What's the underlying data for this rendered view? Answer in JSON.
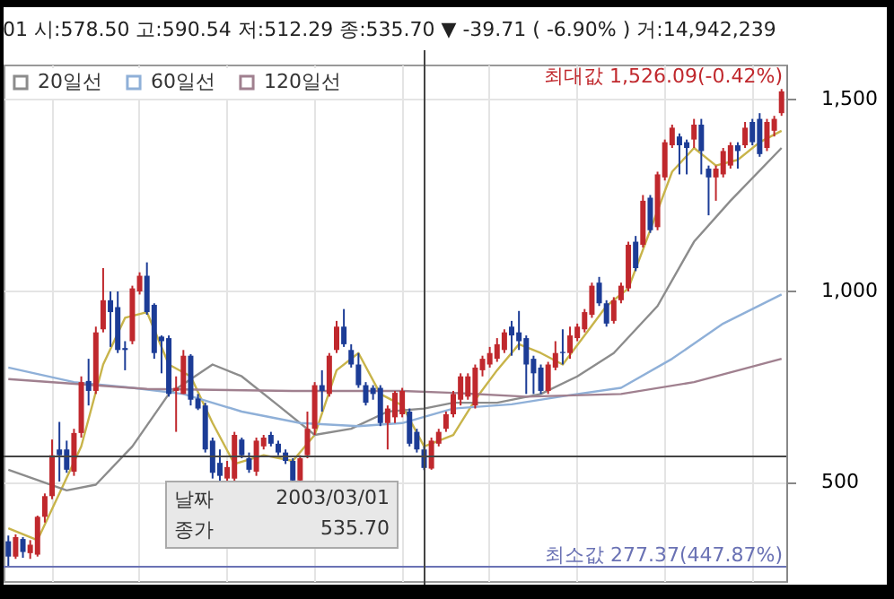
{
  "chart_data": {
    "type": "candlestick",
    "title": "01 시:578.50 고:590.54 저:512.29 종:535.70 ▼ -39.71 ( -6.90% ) 거:14,942,239",
    "categories": [
      null,
      null,
      null,
      null,
      null,
      null,
      null,
      null,
      null,
      null,
      null,
      null,
      null,
      null,
      null,
      null,
      null,
      null,
      null,
      null,
      null,
      null,
      null,
      null,
      null,
      null,
      null,
      null,
      null,
      null,
      null,
      null,
      null,
      null,
      null,
      null,
      null,
      null,
      null,
      null,
      null,
      null,
      null,
      null,
      null,
      null,
      null,
      null,
      null,
      null,
      null,
      null,
      null,
      null,
      null,
      null,
      null,
      null,
      null,
      null,
      null,
      null,
      null,
      null,
      null,
      null,
      null,
      null,
      null,
      null,
      null,
      null,
      null,
      null,
      null,
      null,
      null,
      null,
      null,
      null,
      null,
      null,
      null,
      null,
      null,
      null,
      null,
      null,
      null,
      null,
      null,
      null,
      null,
      null,
      null,
      null,
      null,
      null,
      null,
      null,
      null,
      null,
      null,
      null,
      null,
      null,
      null
    ],
    "ohlc": [
      [
        344,
        359,
        277.37,
        304
      ],
      [
        304,
        362,
        298,
        355
      ],
      [
        350,
        355,
        301,
        316
      ],
      [
        313,
        347,
        298,
        335
      ],
      [
        309,
        411,
        304,
        408
      ],
      [
        408,
        469,
        393,
        462
      ],
      [
        462,
        610,
        454,
        569
      ],
      [
        584,
        656,
        500,
        569
      ],
      [
        584,
        607,
        523,
        531
      ],
      [
        526,
        638,
        515,
        627
      ],
      [
        627,
        775,
        615,
        760
      ],
      [
        763,
        821,
        699,
        737
      ],
      [
        737,
        905,
        729,
        890
      ],
      [
        898,
        1058,
        890,
        974
      ],
      [
        974,
        997,
        852,
        943
      ],
      [
        956,
        997,
        836,
        844
      ],
      [
        849,
        867,
        791,
        844
      ],
      [
        867,
        1012,
        859,
        1005
      ],
      [
        997,
        1047,
        989,
        1038
      ],
      [
        1038,
        1073,
        936,
        943
      ],
      [
        962,
        966,
        821,
        836
      ],
      [
        879,
        882,
        783,
        867
      ],
      [
        875,
        882,
        722,
        729
      ],
      [
        737,
        775,
        630,
        745
      ],
      [
        729,
        844,
        729,
        829
      ],
      [
        829,
        833,
        699,
        714
      ],
      [
        717,
        729,
        687,
        691
      ],
      [
        699,
        706,
        576,
        584
      ],
      [
        607,
        615,
        508,
        523
      ],
      [
        549,
        584,
        500,
        515
      ],
      [
        508,
        554,
        500,
        538
      ],
      [
        508,
        630,
        500,
        622
      ],
      [
        610,
        615,
        561,
        569
      ],
      [
        561,
        576,
        523,
        531
      ],
      [
        526,
        615,
        515,
        607
      ],
      [
        592,
        622,
        584,
        615
      ],
      [
        622,
        630,
        592,
        599
      ],
      [
        599,
        607,
        569,
        576
      ],
      [
        576,
        584,
        546,
        554
      ],
      [
        554,
        561,
        500,
        503
      ],
      [
        503,
        569,
        500,
        561
      ],
      [
        569,
        683,
        561,
        638
      ],
      [
        638,
        760,
        622,
        752
      ],
      [
        752,
        791,
        683,
        737
      ],
      [
        729,
        836,
        722,
        829
      ],
      [
        844,
        920,
        836,
        905
      ],
      [
        905,
        951,
        852,
        859
      ],
      [
        844,
        859,
        798,
        806
      ],
      [
        806,
        836,
        745,
        752
      ],
      [
        752,
        760,
        699,
        706
      ],
      [
        745,
        752,
        714,
        729
      ],
      [
        745,
        752,
        645,
        653
      ],
      [
        653,
        699,
        584,
        691
      ],
      [
        668,
        737,
        653,
        732
      ],
      [
        676,
        745,
        668,
        737
      ],
      [
        683,
        691,
        592,
        599
      ],
      [
        630,
        638,
        576,
        584
      ],
      [
        584,
        592,
        530,
        535.7
      ],
      [
        534,
        615,
        531,
        607
      ],
      [
        599,
        638,
        592,
        630
      ],
      [
        638,
        683,
        630,
        676
      ],
      [
        676,
        737,
        668,
        729
      ],
      [
        714,
        783,
        699,
        775
      ],
      [
        722,
        783,
        714,
        775
      ],
      [
        699,
        806,
        691,
        798
      ],
      [
        791,
        829,
        775,
        821
      ],
      [
        806,
        852,
        798,
        836
      ],
      [
        821,
        875,
        813,
        859
      ],
      [
        844,
        898,
        836,
        890
      ],
      [
        905,
        920,
        829,
        882
      ],
      [
        890,
        946,
        844,
        867
      ],
      [
        875,
        882,
        729,
        806
      ],
      [
        821,
        829,
        729,
        783
      ],
      [
        798,
        806,
        729,
        737
      ],
      [
        737,
        813,
        729,
        806
      ],
      [
        798,
        867,
        791,
        836
      ],
      [
        839,
        898,
        806,
        836
      ],
      [
        836,
        905,
        821,
        882
      ],
      [
        875,
        913,
        867,
        905
      ],
      [
        898,
        951,
        890,
        943
      ],
      [
        936,
        1020,
        928,
        1012
      ],
      [
        1020,
        1035,
        959,
        966
      ],
      [
        966,
        974,
        905,
        913
      ],
      [
        920,
        982,
        913,
        974
      ],
      [
        974,
        1020,
        966,
        1012
      ],
      [
        1005,
        1127,
        997,
        1119
      ],
      [
        1127,
        1142,
        1050,
        1058
      ],
      [
        1119,
        1249,
        1112,
        1234
      ],
      [
        1242,
        1249,
        1150,
        1157
      ],
      [
        1165,
        1310,
        1157,
        1303
      ],
      [
        1295,
        1394,
        1287,
        1387
      ],
      [
        1379,
        1433,
        1372,
        1425
      ],
      [
        1402,
        1410,
        1303,
        1379
      ],
      [
        1387,
        1394,
        1303,
        1372
      ],
      [
        1394,
        1448,
        1372,
        1433
      ],
      [
        1433,
        1448,
        1303,
        1364
      ],
      [
        1318,
        1326,
        1196,
        1295
      ],
      [
        1295,
        1326,
        1234,
        1318
      ],
      [
        1303,
        1372,
        1295,
        1364
      ],
      [
        1326,
        1387,
        1318,
        1379
      ],
      [
        1379,
        1387,
        1318,
        1364
      ],
      [
        1379,
        1440,
        1372,
        1425
      ],
      [
        1440,
        1448,
        1379,
        1387
      ],
      [
        1448,
        1463,
        1349,
        1356
      ],
      [
        1372,
        1448,
        1364,
        1440
      ],
      [
        1417,
        1456,
        1402,
        1448
      ],
      [
        1463,
        1526.09,
        1456,
        1520
      ]
    ],
    "colors": [
      "#1c3c96",
      "#c0282d",
      "#1c3c96",
      "#c0282d",
      "#c0282d",
      "#c0282d",
      "#c0282d",
      "#1c3c96",
      "#1c3c96",
      "#c0282d",
      "#c0282d",
      "#1c3c96",
      "#c0282d",
      "#c0282d",
      "#1c3c96",
      "#1c3c96",
      "#1c3c96",
      "#c0282d",
      "#c0282d",
      "#1c3c96",
      "#1c3c96",
      "#1c3c96",
      "#1c3c96",
      "#c0282d",
      "#c0282d",
      "#1c3c96",
      "#1c3c96",
      "#1c3c96",
      "#1c3c96",
      "#1c3c96",
      "#c0282d",
      "#c0282d",
      "#1c3c96",
      "#1c3c96",
      "#c0282d",
      "#c0282d",
      "#1c3c96",
      "#1c3c96",
      "#1c3c96",
      "#1c3c96",
      "#c0282d",
      "#c0282d",
      "#c0282d",
      "#1c3c96",
      "#c0282d",
      "#c0282d",
      "#1c3c96",
      "#1c3c96",
      "#1c3c96",
      "#1c3c96",
      "#1c3c96",
      "#1c3c96",
      "#c0282d",
      "#c0282d",
      "#c0282d",
      "#1c3c96",
      "#1c3c96",
      "#1c3c96",
      "#c0282d",
      "#c0282d",
      "#c0282d",
      "#c0282d",
      "#c0282d",
      "#c0282d",
      "#c0282d",
      "#c0282d",
      "#c0282d",
      "#c0282d",
      "#c0282d",
      "#1c3c96",
      "#1c3c96",
      "#1c3c96",
      "#1c3c96",
      "#1c3c96",
      "#c0282d",
      "#c0282d",
      "#1c3c96",
      "#c0282d",
      "#c0282d",
      "#c0282d",
      "#c0282d",
      "#1c3c96",
      "#1c3c96",
      "#c0282d",
      "#c0282d",
      "#c0282d",
      "#1c3c96",
      "#c0282d",
      "#1c3c96",
      "#c0282d",
      "#c0282d",
      "#c0282d",
      "#1c3c96",
      "#1c3c96",
      "#c0282d",
      "#1c3c96",
      "#1c3c96",
      "#c0282d",
      "#c0282d",
      "#c0282d",
      "#1c3c96",
      "#c0282d",
      "#1c3c96",
      "#1c3c96",
      "#c0282d",
      "#c0282d",
      "#c0282d"
    ],
    "series": [
      {
        "type": "line",
        "color": "#c8b44a",
        "values": [
          378,
          null,
          null,
          null,
          347,
          null,
          null,
          469,
          null,
          null,
          592,
          null,
          null,
          806,
          null,
          null,
          928,
          null,
          null,
          943,
          null,
          null,
          806,
          null,
          null,
          775,
          null,
          null,
          653,
          null,
          null,
          546,
          null,
          null,
          null,
          569,
          null,
          null,
          null,
          554,
          null,
          null,
          622,
          null,
          null,
          791,
          null,
          null,
          836,
          null,
          null,
          729,
          null,
          null,
          699,
          null,
          null,
          592,
          null,
          null,
          null,
          622,
          null,
          null,
          714,
          null,
          null,
          791,
          null,
          null,
          859,
          null,
          null,
          836,
          null,
          null,
          806,
          null,
          null,
          882,
          null,
          null,
          959,
          null,
          null,
          1005,
          null,
          null,
          1157,
          null,
          null,
          1310,
          null,
          null,
          1372,
          null,
          null,
          1326,
          null,
          null,
          1341,
          null,
          null,
          1387,
          null,
          null,
          1417
        ]
      },
      {
        "type": "line",
        "name": "20일선",
        "color": "#8c8c8c",
        "values": [
          531,
          null,
          null,
          null,
          null,
          null,
          null,
          null,
          477,
          null,
          null,
          null,
          492,
          null,
          null,
          null,
          null,
          592,
          null,
          null,
          null,
          null,
          729,
          null,
          null,
          null,
          null,
          null,
          806,
          null,
          null,
          null,
          775,
          null,
          null,
          null,
          null,
          699,
          null,
          null,
          null,
          null,
          622,
          null,
          null,
          null,
          null,
          638,
          null,
          null,
          null,
          null,
          683,
          null,
          null,
          null,
          null,
          691,
          null,
          null,
          null,
          706,
          null,
          null,
          null,
          null,
          null,
          706,
          null,
          null,
          null,
          null,
          null,
          729,
          null,
          null,
          null,
          null,
          775,
          null,
          null,
          null,
          null,
          836,
          null,
          null,
          null,
          null,
          null,
          959,
          null,
          null,
          null,
          null,
          1127,
          null,
          null,
          null,
          null,
          1234,
          null,
          null,
          null,
          null,
          null,
          null,
          1372
        ]
      },
      {
        "type": "line",
        "name": "60일선",
        "color": "#8fb0d8",
        "values": [
          798,
          null,
          null,
          null,
          null,
          null,
          null,
          null,
          null,
          760,
          null,
          null,
          null,
          null,
          null,
          null,
          null,
          745,
          null,
          null,
          null,
          null,
          null,
          null,
          729,
          null,
          null,
          null,
          null,
          null,
          null,
          null,
          683,
          null,
          null,
          null,
          null,
          null,
          null,
          null,
          653,
          null,
          null,
          null,
          null,
          null,
          null,
          null,
          645,
          null,
          null,
          null,
          null,
          null,
          653,
          null,
          null,
          null,
          null,
          null,
          null,
          691,
          null,
          null,
          null,
          null,
          null,
          null,
          null,
          702,
          null,
          null,
          null,
          null,
          null,
          null,
          null,
          726,
          null,
          null,
          null,
          null,
          null,
          null,
          745,
          null,
          null,
          null,
          null,
          null,
          null,
          821,
          null,
          null,
          null,
          null,
          null,
          null,
          913,
          null,
          null,
          null,
          null,
          null,
          null,
          null,
          989
        ]
      },
      {
        "type": "line",
        "name": "120일선",
        "color": "#a0808f",
        "values": [
          768,
          null,
          null,
          null,
          null,
          null,
          null,
          null,
          null,
          null,
          null,
          null,
          null,
          null,
          null,
          null,
          null,
          null,
          null,
          742,
          null,
          null,
          null,
          null,
          null,
          null,
          null,
          null,
          null,
          null,
          null,
          null,
          null,
          null,
          null,
          null,
          null,
          null,
          null,
          737,
          null,
          null,
          null,
          null,
          null,
          null,
          null,
          null,
          null,
          null,
          null,
          null,
          null,
          null,
          737,
          null,
          null,
          null,
          null,
          null,
          null,
          732,
          null,
          null,
          null,
          null,
          null,
          null,
          null,
          null,
          null,
          722,
          null,
          null,
          null,
          null,
          null,
          null,
          null,
          null,
          null,
          null,
          null,
          null,
          729,
          null,
          null,
          null,
          null,
          null,
          null,
          null,
          null,
          null,
          760,
          null,
          null,
          null,
          null,
          null,
          null,
          null,
          null,
          null,
          null,
          null,
          821
        ]
      }
    ],
    "ylim": [
      240,
      1590
    ],
    "yticks": [
      500,
      {
        "value": 1000,
        "label": "1,000"
      },
      {
        "value": 1500,
        "label": "1,500"
      }
    ],
    "ref_lines": [
      {
        "axis": "y",
        "value": 566,
        "color": "#444444"
      },
      {
        "axis": "y",
        "value": 277.37,
        "label": "최소값 277.37(447.87%)",
        "color": "#6a72b4"
      }
    ],
    "annotations": [
      "최대값 1,526.09(-0.42%)",
      "날짜",
      "2003/03/01",
      "종가",
      "535.70"
    ],
    "grid": true,
    "legend": "top left",
    "tick_labels": "y"
  }
}
